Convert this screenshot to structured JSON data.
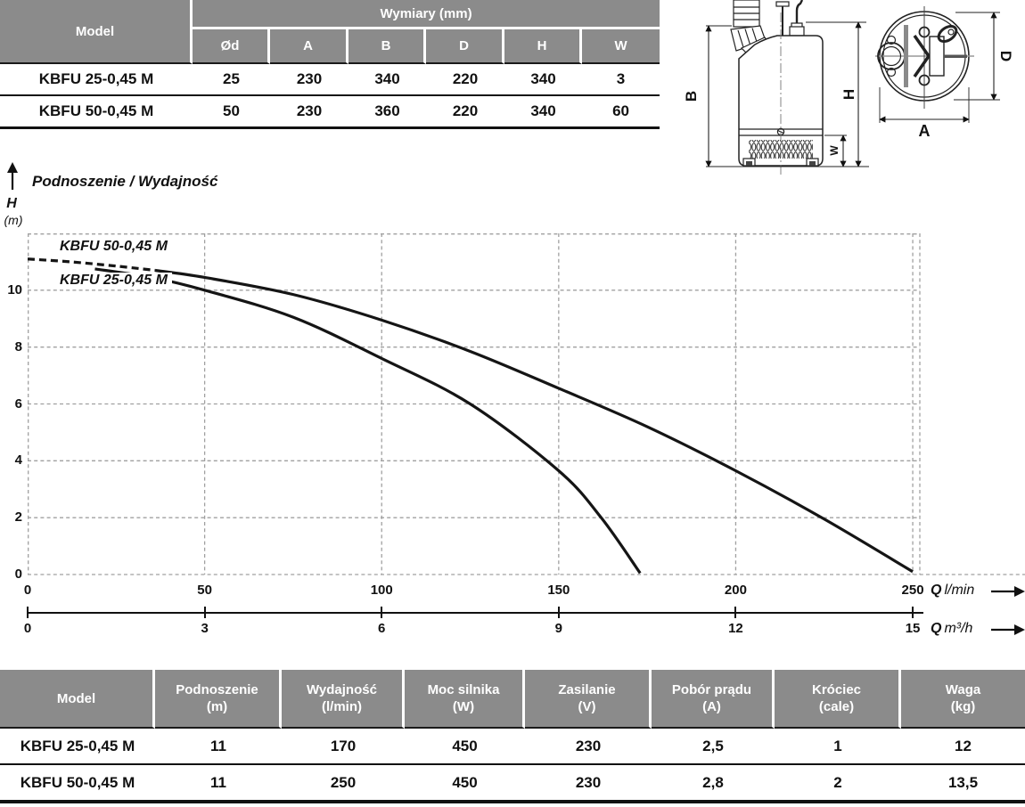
{
  "dimensions_table": {
    "model_header": "Model",
    "group_header": "Wymiary (mm)",
    "columns": [
      "Ød",
      "A",
      "B",
      "D",
      "H",
      "W"
    ],
    "rows": [
      {
        "model": "KBFU 25-0,45 M",
        "values": [
          "25",
          "230",
          "340",
          "220",
          "340",
          "3"
        ]
      },
      {
        "model": "KBFU 50-0,45 M",
        "values": [
          "50",
          "230",
          "360",
          "220",
          "340",
          "60"
        ]
      }
    ],
    "header_bg": "#8b8b8b"
  },
  "drawing": {
    "labels": {
      "b": "B",
      "h": "H",
      "w": "W",
      "d": "D",
      "a": "A"
    }
  },
  "chart": {
    "title": "Podnoszenie / Wydajność",
    "y_label": "H",
    "y_unit": "(m)",
    "x_unit_primary_q": "Q",
    "x_unit_primary": "l/min",
    "x_unit_secondary_q": "Q",
    "x_unit_secondary": "m³/h"
  },
  "chart_data": {
    "type": "line",
    "title": "Podnoszenie / Wydajność",
    "ylabel": "H (m)",
    "xlabel_primary": "Q l/min",
    "xlabel_secondary": "Q m³/h",
    "xlim_lmin": [
      0,
      252
    ],
    "ylim": [
      0,
      12
    ],
    "y_ticks": [
      0,
      2,
      4,
      6,
      8,
      10
    ],
    "x_ticks_lmin": [
      0,
      50,
      100,
      150,
      200,
      250
    ],
    "x_ticks_m3h": [
      0,
      3,
      6,
      9,
      12,
      15
    ],
    "grid": true,
    "legend_position": "on-curve",
    "series": [
      {
        "name": "KBFU 50-0,45 M",
        "line": "dashed-then-solid",
        "dash_until": 36,
        "points": [
          [
            0,
            11.1
          ],
          [
            12,
            11.0
          ],
          [
            25,
            10.85
          ],
          [
            36,
            10.7
          ],
          [
            50,
            10.45
          ],
          [
            75,
            9.85
          ],
          [
            100,
            8.95
          ],
          [
            125,
            7.85
          ],
          [
            150,
            6.55
          ],
          [
            175,
            5.2
          ],
          [
            200,
            3.65
          ],
          [
            225,
            1.95
          ],
          [
            250,
            0.1
          ]
        ]
      },
      {
        "name": "KBFU 25-0,45 M",
        "line": "solid",
        "points": [
          [
            19,
            10.75
          ],
          [
            35,
            10.45
          ],
          [
            50,
            10.0
          ],
          [
            75,
            9.05
          ],
          [
            100,
            7.6
          ],
          [
            125,
            6.0
          ],
          [
            150,
            3.65
          ],
          [
            162,
            2.0
          ],
          [
            173,
            0.05
          ]
        ]
      }
    ]
  },
  "spec_table": {
    "columns": [
      {
        "l1": "Model",
        "l2": ""
      },
      {
        "l1": "Podnoszenie",
        "l2": "(m)"
      },
      {
        "l1": "Wydajność",
        "l2": "(l/min)"
      },
      {
        "l1": "Moc silnika",
        "l2": "(W)"
      },
      {
        "l1": "Zasilanie",
        "l2": "(V)"
      },
      {
        "l1": "Pobór prądu",
        "l2": "(A)"
      },
      {
        "l1": "Króciec",
        "l2": "(cale)"
      },
      {
        "l1": "Waga",
        "l2": "(kg)"
      }
    ],
    "rows": [
      [
        "KBFU 25-0,45 M",
        "11",
        "170",
        "450",
        "230",
        "2,5",
        "1",
        "12"
      ],
      [
        "KBFU 50-0,45 M",
        "11",
        "250",
        "450",
        "230",
        "2,8",
        "2",
        "13,5"
      ]
    ]
  }
}
